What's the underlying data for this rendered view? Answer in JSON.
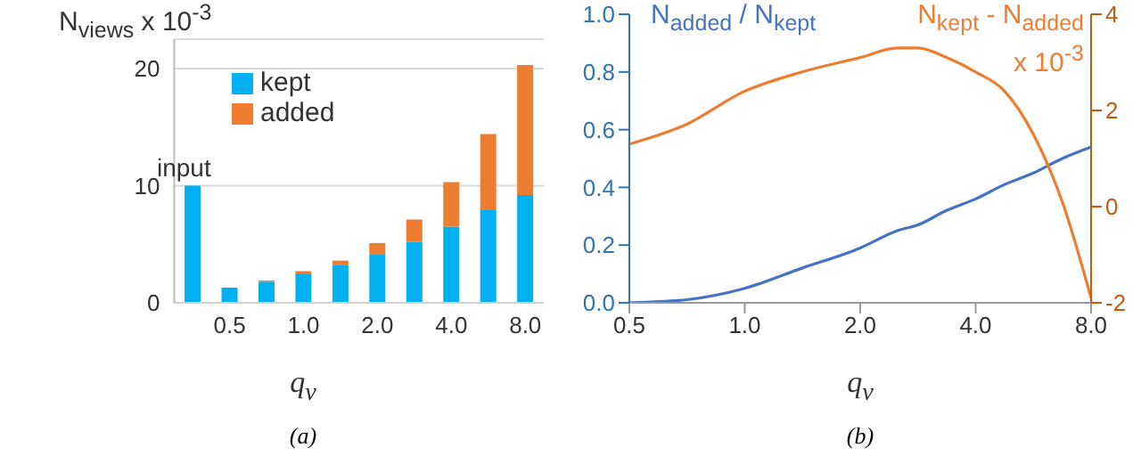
{
  "chart_data": [
    {
      "type": "bar",
      "stacked": true,
      "categories": [
        null,
        "0.5",
        null,
        "1.0",
        null,
        "2.0",
        null,
        "4.0",
        null,
        "8.0"
      ],
      "series": [
        {
          "name": "kept",
          "color": "#00b0f0",
          "values": [
            10,
            1.3,
            1.8,
            2.5,
            3.2,
            4.1,
            5.2,
            6.5,
            7.9,
            9.2
          ]
        },
        {
          "name": "added",
          "color": "#ed7d31",
          "values": [
            0,
            0,
            0.1,
            0.2,
            0.4,
            1.0,
            1.9,
            3.8,
            6.5,
            11.1
          ]
        }
      ],
      "ylim": [
        0,
        22.5
      ],
      "yticks": [
        0,
        10,
        20
      ],
      "grid": "y",
      "legend": "top",
      "ylabel": "N$_{views}$ x 10$^{-3}$",
      "xlabel": "q$_{v}$",
      "annotations": [
        "input",
        "(a)"
      ]
    },
    {
      "type": "line",
      "log": "x",
      "x": [
        0.5,
        0.7,
        1,
        1.41,
        2,
        2.5,
        2.83,
        3.36,
        4,
        4.76,
        5.66,
        6.73,
        8
      ],
      "series": [
        {
          "color": "#4472c4",
          "values": [
            0,
            0.01,
            0.05,
            0.12,
            0.19,
            0.25,
            0.27,
            0.32,
            0.36,
            0.41,
            0.45,
            0.5,
            0.54
          ]
        },
        {
          "color": "#ed7d31",
          "axis": "y2",
          "values": [
            1.3,
            1.7,
            2.4,
            2.8,
            3.1,
            3.3,
            3.3,
            3.1,
            2.8,
            2.4,
            1.5,
            0.1,
            -1.9
          ]
        }
      ],
      "xlim": [
        0.5,
        8
      ],
      "xticks": [
        0.5,
        {
          "value": 1,
          "label": "1.0"
        },
        {
          "value": 2,
          "label": "2.0"
        },
        {
          "value": 4,
          "label": "4.0"
        },
        {
          "value": 8,
          "label": "8.0"
        }
      ],
      "ylim": [
        0,
        1
      ],
      "yticks": [
        {
          "value": 0,
          "label": "0.0"
        },
        {
          "value": 0.2,
          "label": "0.2"
        },
        {
          "value": 0.4,
          "label": "0.4"
        },
        {
          "value": 0.6,
          "label": "0.6"
        },
        {
          "value": 0.8,
          "label": "0.8"
        },
        {
          "value": 1,
          "label": "1.0"
        }
      ],
      "y2lim": [
        -2,
        4
      ],
      "y2ticks": [
        -2,
        0,
        2,
        4
      ],
      "ylabel": "N$_{added}$ / N$_{kept}$",
      "y2label": "N$_{kept}$ - N$_{added}$ x 10$^{-3}$",
      "xlabel": "q$_{v}$",
      "annotations": [
        "(b)"
      ]
    }
  ]
}
